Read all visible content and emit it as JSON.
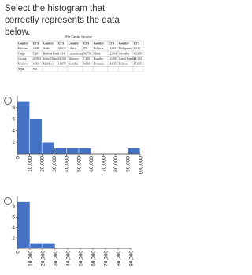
{
  "question": "Select the histogram that correctly represents the data below.",
  "table": {
    "title": "Per Capita Income",
    "header": [
      "Country",
      "US $",
      "Country",
      "US $",
      "Country",
      "US $",
      "Country",
      "US $",
      "Country",
      "US $"
    ],
    "rows": [
      [
        "Pakistan",
        "4,699",
        "Aruba",
        "36,016",
        "Liberia",
        "876",
        "Bulgaria",
        "13,901",
        "Philippines",
        "6,513"
      ],
      [
        "Tonga",
        "5,201",
        "Burkina Faso",
        "1,424",
        "Luxembourg",
        "96,756",
        "China",
        "12,964",
        "Australia",
        "43,358"
      ],
      [
        "Croatia",
        "20,904",
        "United States",
        "51,163",
        "Morocco",
        "7,200",
        "Ecuador",
        "10,469",
        "Czech Republic",
        "27,104"
      ],
      [
        "Moldova",
        "4,669",
        "Maldives",
        "11,654",
        "Namibia",
        "9,600",
        "Romania",
        "18,635",
        "Belarus",
        "17,615"
      ],
      [
        "Nepal",
        "963"
      ]
    ]
  },
  "chart_data": [
    {
      "type": "histogram",
      "color": "#4472c4",
      "bins": [
        0,
        10000,
        20000,
        30000,
        40000,
        50000,
        60000,
        70000,
        80000,
        90000,
        100000
      ],
      "values": [
        9,
        6,
        2,
        1,
        1,
        1,
        0,
        0,
        0,
        1
      ],
      "ylim": [
        0,
        10
      ],
      "yticks": [
        2,
        4,
        6,
        8
      ],
      "xticks": [
        0,
        {
          "value": 10000,
          "label": "10,000"
        },
        {
          "value": 20000,
          "label": "20,000"
        },
        {
          "value": 30000,
          "label": "30,000"
        },
        {
          "value": 40000,
          "label": "40,000"
        },
        {
          "value": 50000,
          "label": "50,000"
        },
        {
          "value": 60000,
          "label": "60,000"
        },
        {
          "value": 70000,
          "label": "70,000"
        },
        {
          "value": 80000,
          "label": "80,000"
        },
        {
          "value": 90000,
          "label": "90,000"
        },
        {
          "value": 100000,
          "label": "100,000"
        }
      ]
    },
    {
      "type": "histogram",
      "color": "#4472c4",
      "bins": [
        0,
        10000,
        20000,
        30000,
        40000,
        50000,
        60000,
        70000,
        80000,
        90000
      ],
      "values": [
        9,
        1,
        1,
        0,
        0,
        0,
        0,
        0,
        0
      ],
      "ylim": [
        0,
        10
      ],
      "yticks": [
        2,
        4,
        6,
        8
      ],
      "xticks": [
        0,
        {
          "value": 10000,
          "label": "10,000"
        },
        {
          "value": 20000,
          "label": "20,000"
        },
        {
          "value": 30000,
          "label": "30,000"
        },
        {
          "value": 40000,
          "label": "40,000"
        },
        {
          "value": 50000,
          "label": "50,000"
        },
        {
          "value": 60000,
          "label": "60,000"
        },
        {
          "value": 70000,
          "label": "70,000"
        },
        {
          "value": 80000,
          "label": "80,000"
        },
        {
          "value": 90000,
          "label": "90,000"
        }
      ]
    }
  ]
}
